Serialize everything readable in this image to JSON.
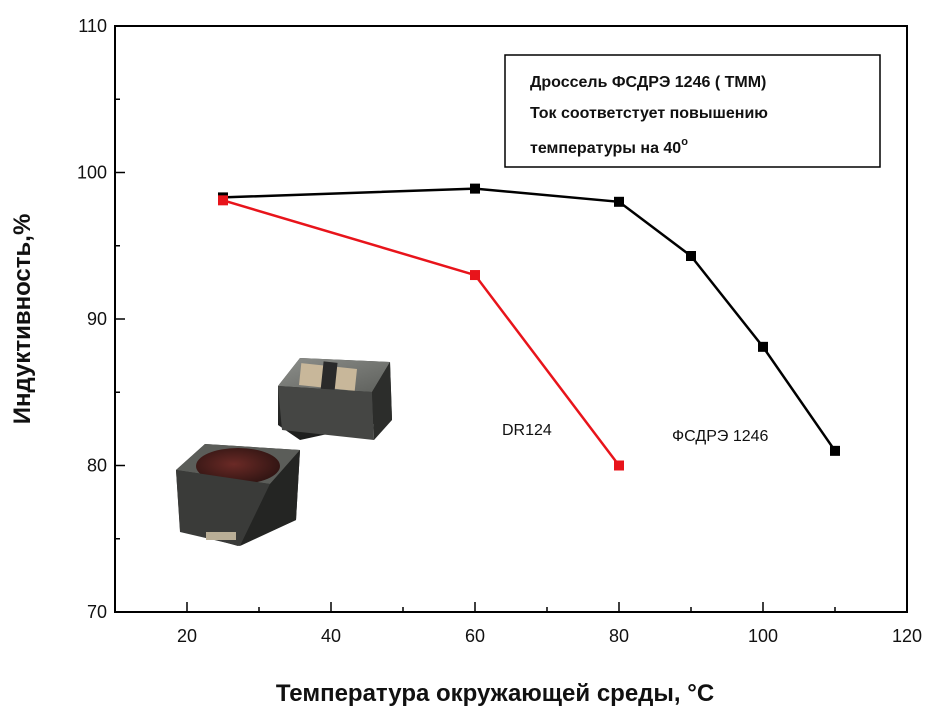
{
  "chart_data": {
    "type": "line",
    "title": "",
    "xlabel": "Температура окружающей среды, °C",
    "ylabel": "Индуктивность,%",
    "xlim": [
      10,
      120
    ],
    "ylim": [
      70,
      110
    ],
    "x_ticks": [
      20,
      40,
      60,
      80,
      100,
      120
    ],
    "y_ticks": [
      70,
      80,
      90,
      100,
      110
    ],
    "grid": false,
    "series": [
      {
        "name": "ФСДРЭ 1246",
        "color": "#000000",
        "x": [
          25,
          60,
          80,
          90,
          100,
          110
        ],
        "y": [
          98.3,
          98.9,
          98.0,
          94.3,
          88.1,
          81.0
        ]
      },
      {
        "name": "DR124",
        "color": "#e8141b",
        "x": [
          25,
          60,
          80
        ],
        "y": [
          98.1,
          93.0,
          80.0
        ]
      }
    ],
    "annotation": {
      "line1": "Дроссель ФСДРЭ 1246 ( ТММ)",
      "line2": "Ток соответстует повышению",
      "line3": "температуры на 40",
      "line3_sup": "o"
    },
    "image": "photo of two SMD power inductors (ФСДРЭ 1246 and DR124)"
  }
}
